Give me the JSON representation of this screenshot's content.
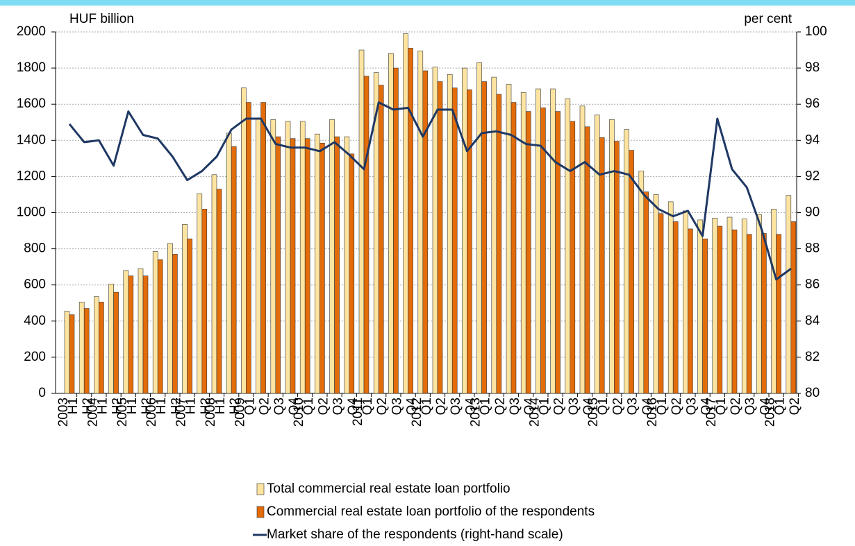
{
  "chart_data": {
    "type": "bar",
    "y_label": "HUF billion",
    "y2_label": "per cent",
    "categories": [
      "H1",
      "H2",
      "H1",
      "H2",
      "H1",
      "H2",
      "H1",
      "H2",
      "H1",
      "H2",
      "H1",
      "H2",
      "Q1",
      "Q2",
      "Q3",
      "Q4",
      "Q1",
      "Q2",
      "Q3",
      "Q4",
      "Q1",
      "Q2",
      "Q3",
      "Q4",
      "Q1",
      "Q2",
      "Q3",
      "Q4",
      "Q1",
      "Q2",
      "Q3",
      "Q4",
      "Q1",
      "Q2",
      "Q3",
      "Q4",
      "Q1",
      "Q2",
      "Q3",
      "Q4",
      "Q1",
      "Q2",
      "Q3",
      "Q4",
      "Q1",
      "Q2",
      "Q3",
      "Q4",
      "Q1",
      "Q2"
    ],
    "year_labels": [
      "2003",
      null,
      "2004",
      null,
      "2005",
      null,
      "2006",
      null,
      "2007",
      null,
      "2008",
      null,
      "2009",
      null,
      null,
      null,
      "2010",
      null,
      null,
      null,
      "2011",
      null,
      null,
      null,
      "2012",
      null,
      null,
      null,
      "2013",
      null,
      null,
      null,
      "2014",
      null,
      null,
      null,
      "2015",
      null,
      null,
      null,
      "2016",
      null,
      null,
      null,
      "2017",
      null,
      null,
      null,
      "2018",
      null
    ],
    "series": [
      {
        "name": "Total commercial real estate loan portfolio",
        "color": "#fde4a0",
        "values": [
          455,
          505,
          535,
          605,
          680,
          690,
          785,
          830,
          935,
          1105,
          1210,
          1440,
          1690,
          1520,
          1515,
          1505,
          1505,
          1435,
          1515,
          1420,
          1900,
          1775,
          1880,
          1990,
          1895,
          1805,
          1765,
          1800,
          1830,
          1750,
          1710,
          1665,
          1685,
          1685,
          1630,
          1590,
          1540,
          1515,
          1460,
          1230,
          1100,
          1060,
          1010,
          960,
          970,
          975,
          965,
          990,
          1020,
          1095
        ]
      },
      {
        "name": "Commercial real estate loan portfolio of the respondents",
        "color": "#e36c0a",
        "values": [
          435,
          470,
          505,
          560,
          650,
          650,
          740,
          770,
          855,
          1020,
          1130,
          1365,
          1610,
          1610,
          1420,
          1410,
          1410,
          1385,
          1420,
          1325,
          1755,
          1705,
          1800,
          1910,
          1785,
          1725,
          1690,
          1680,
          1725,
          1655,
          1610,
          1560,
          1580,
          1560,
          1505,
          1475,
          1415,
          1395,
          1345,
          1115,
          995,
          950,
          910,
          855,
          925,
          905,
          880,
          885,
          880,
          950
        ]
      },
      {
        "name": "Market share of the respondents (right-hand scale)",
        "color": "#1f3864",
        "type": "line",
        "axis": "y2",
        "values": [
          94.9,
          93.9,
          94.0,
          92.6,
          95.6,
          94.3,
          94.1,
          93.1,
          91.8,
          92.3,
          93.1,
          94.6,
          95.2,
          95.2,
          93.8,
          93.6,
          93.6,
          93.4,
          93.9,
          93.2,
          92.4,
          96.1,
          95.7,
          95.8,
          94.2,
          95.7,
          95.7,
          93.4,
          94.4,
          94.5,
          94.3,
          93.8,
          93.7,
          92.8,
          92.3,
          92.8,
          92.1,
          92.3,
          92.1,
          91.0,
          90.2,
          89.8,
          90.1,
          88.7,
          95.2,
          92.4,
          91.4,
          89.1,
          86.3,
          86.9
        ]
      }
    ],
    "ylim": [
      0,
      2000
    ],
    "yticks": [
      0,
      200,
      400,
      600,
      800,
      1000,
      1200,
      1400,
      1600,
      1800,
      2000
    ],
    "y2lim": [
      80,
      100
    ],
    "y2ticks": [
      80,
      82,
      84,
      86,
      88,
      90,
      92,
      94,
      96,
      98,
      100
    ],
    "grid": true
  }
}
